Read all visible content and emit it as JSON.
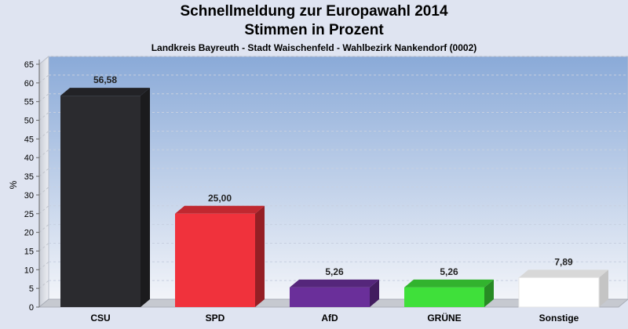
{
  "chart_data": {
    "type": "bar",
    "title": "Schnellmeldung zur Europawahl 2014",
    "subtitle": "Stimmen in Prozent",
    "caption": "Landkreis Bayreuth - Stadt Waischenfeld - Wahlbezirk Nankendorf (0002)",
    "ylabel": "%",
    "xlabel": "",
    "ylim": [
      0,
      65
    ],
    "yticks": [
      "0",
      "5",
      "10",
      "15",
      "20",
      "25",
      "30",
      "35",
      "40",
      "45",
      "50",
      "55",
      "60",
      "65"
    ],
    "categories": [
      "CSU",
      "SPD",
      "AfD",
      "GRÜNE",
      "Sonstige"
    ],
    "values": [
      56.58,
      25.0,
      5.26,
      5.26,
      7.89
    ],
    "value_labels": [
      "56,58",
      "25,00",
      "5,26",
      "5,26",
      "7,89"
    ],
    "colors": [
      "#2b2b2f",
      "#f0323c",
      "#6a2f9a",
      "#3fe03a",
      "#ffffff"
    ],
    "grid": true,
    "legend": "none"
  }
}
